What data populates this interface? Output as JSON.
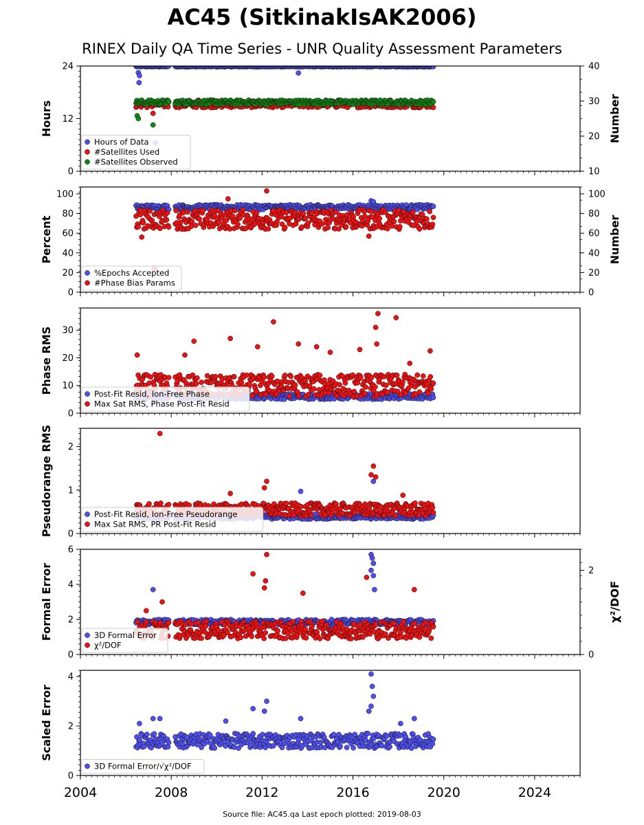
{
  "title": "AC45 (SitkinakIsAK2006)",
  "subtitle": "RINEX Daily QA Time Series - UNR Quality Assessment Parameters",
  "source_note": "Source file: AC45.qa Last epoch plotted: 2019-08-03",
  "colors": {
    "blue": "#4f4ff0",
    "red": "#ee1111",
    "green": "#118811"
  },
  "chart_data": [
    {
      "type": "scatter",
      "ylabel": "Hours",
      "ylim": [
        0,
        24
      ],
      "yticks": [
        "0",
        "12",
        "24"
      ],
      "right_ylabel": "Number",
      "right_ylim": [
        10,
        40
      ],
      "right_yticks": [
        "10",
        "20",
        "30",
        "40"
      ],
      "xlim": [
        2004,
        2026
      ],
      "grid": false,
      "legend_position": "lower-left",
      "series": [
        {
          "name": "Hours of Data",
          "color": "blue",
          "axis": "left",
          "band": [
            23.8,
            24.0
          ],
          "gap": [
            2007.9,
            2008.15
          ],
          "outliers": [
            [
              2006.55,
              22.5
            ],
            [
              2006.6,
              21.8
            ],
            [
              2006.58,
              20.2
            ],
            [
              2007.3,
              6.5
            ],
            [
              2013.6,
              22.4
            ]
          ]
        },
        {
          "name": "#Satellites Used",
          "color": "red",
          "axis": "left",
          "band": [
            14.5,
            16.0
          ],
          "gap": [
            2007.9,
            2008.15
          ],
          "outliers": [
            [
              2007.2,
              13.2
            ],
            [
              2009.2,
              16.2
            ]
          ]
        },
        {
          "name": "#Satellites Observed",
          "color": "green",
          "axis": "right",
          "band": [
            29.0,
            30.3
          ],
          "gap": [
            2007.9,
            2008.15
          ],
          "outliers": [
            [
              2006.5,
              25.8
            ],
            [
              2006.55,
              25.0
            ],
            [
              2007.2,
              23.2
            ]
          ]
        }
      ]
    },
    {
      "type": "scatter",
      "ylabel": "Percent",
      "ylim": [
        0,
        107
      ],
      "yticks": [
        "0",
        "20",
        "40",
        "60",
        "80",
        "100"
      ],
      "right_ylabel": "Number",
      "right_ylim": [
        0,
        107
      ],
      "right_yticks": [
        "0",
        "20",
        "40",
        "60",
        "80",
        "100"
      ],
      "xlim": [
        2004,
        2026
      ],
      "grid": false,
      "legend_position": "lower-left",
      "series": [
        {
          "name": "%Epochs Accepted",
          "color": "blue",
          "axis": "left",
          "band": [
            84,
            89
          ],
          "gap": [
            2007.9,
            2008.15
          ],
          "outliers": [
            [
              2016.8,
              93
            ],
            [
              2016.9,
              92
            ]
          ]
        },
        {
          "name": "#Phase Bias Params",
          "color": "red",
          "axis": "left",
          "band": [
            64,
            84
          ],
          "gap": [
            2007.9,
            2008.15
          ],
          "outliers": [
            [
              2007.25,
              24
            ],
            [
              2010.5,
              95
            ],
            [
              2012.2,
              103
            ],
            [
              2016.7,
              57
            ],
            [
              2006.7,
              56
            ]
          ]
        }
      ]
    },
    {
      "type": "scatter",
      "ylabel": "Phase RMS",
      "ylim": [
        0,
        38
      ],
      "yticks": [
        "0",
        "10",
        "20",
        "30"
      ],
      "xlim": [
        2004,
        2026
      ],
      "grid": false,
      "legend_position": "lower-left",
      "series": [
        {
          "name": "Post-Fit Resid, Ion-Free Phase",
          "color": "blue",
          "axis": "left",
          "band": [
            5,
            7
          ],
          "gap": [
            2007.9,
            2008.15
          ],
          "outliers": []
        },
        {
          "name": "Max Sat RMS, Phase Post-Fit Resid",
          "color": "red",
          "axis": "left",
          "band": [
            6,
            14
          ],
          "gap": [
            2007.9,
            2008.15
          ],
          "outliers": [
            [
              2006.5,
              21
            ],
            [
              2008.6,
              21
            ],
            [
              2009.0,
              26
            ],
            [
              2010.6,
              27
            ],
            [
              2012.5,
              33
            ],
            [
              2013.6,
              25
            ],
            [
              2016.3,
              23
            ],
            [
              2017.0,
              31
            ],
            [
              2017.1,
              36
            ],
            [
              2017.05,
              25
            ],
            [
              2017.9,
              34.5
            ],
            [
              2019.4,
              22.5
            ],
            [
              2011.8,
              24
            ],
            [
              2014.4,
              24
            ],
            [
              2015.0,
              22
            ],
            [
              2018.5,
              18
            ]
          ]
        }
      ]
    },
    {
      "type": "scatter",
      "ylabel": "Pseudorange RMS",
      "ylim": [
        0,
        2.42
      ],
      "yticks": [
        "0",
        "1",
        "2"
      ],
      "xlim": [
        2004,
        2026
      ],
      "grid": false,
      "legend_position": "lower-left",
      "series": [
        {
          "name": "Post-Fit Resid, Ion-Free Pseudorange",
          "color": "blue",
          "axis": "left",
          "band": [
            0.33,
            0.45
          ],
          "gap": [
            2007.9,
            2008.15
          ],
          "outliers": [
            [
              2013.7,
              0.97
            ],
            [
              2016.9,
              1.2
            ]
          ]
        },
        {
          "name": "Max Sat RMS, PR Post-Fit Resid",
          "color": "red",
          "axis": "left",
          "band": [
            0.4,
            0.7
          ],
          "gap": [
            2007.9,
            2008.15
          ],
          "outliers": [
            [
              2007.5,
              2.3
            ],
            [
              2012.2,
              1.2
            ],
            [
              2012.1,
              1.05
            ],
            [
              2016.9,
              1.55
            ],
            [
              2016.8,
              1.35
            ],
            [
              2017.0,
              1.3
            ],
            [
              2010.6,
              0.92
            ],
            [
              2018.2,
              0.88
            ]
          ]
        }
      ]
    },
    {
      "type": "scatter",
      "ylabel": "Formal Error",
      "ylim": [
        0,
        6
      ],
      "yticks": [
        "0",
        "2",
        "4",
        "6"
      ],
      "right_ylabel": "χ²/DOF",
      "right_ylim": [
        0,
        2.5
      ],
      "right_yticks": [
        "0",
        "2"
      ],
      "xlim": [
        2004,
        2026
      ],
      "grid": false,
      "legend_position": "lower-left",
      "series": [
        {
          "name": "3D Formal Error",
          "color": "blue",
          "axis": "left",
          "band": [
            1.7,
            2.0
          ],
          "gap": [
            2007.9,
            2008.15
          ],
          "outliers": [
            [
              2007.2,
              3.7
            ],
            [
              2016.8,
              5.7
            ],
            [
              2016.85,
              5.5
            ],
            [
              2016.9,
              5.2
            ],
            [
              2016.8,
              4.8
            ],
            [
              2016.9,
              4.5
            ],
            [
              2016.95,
              3.7
            ]
          ]
        },
        {
          "name": "χ²/DOF",
          "color": "red",
          "axis": "left",
          "band": [
            0.9,
            1.9
          ],
          "gap": [
            2007.9,
            2008.15
          ],
          "outliers": [
            [
              2011.6,
              4.6
            ],
            [
              2012.2,
              5.7
            ],
            [
              2012.15,
              4.2
            ],
            [
              2012.1,
              3.8
            ],
            [
              2013.8,
              3.5
            ],
            [
              2016.6,
              4.4
            ],
            [
              2018.7,
              3.7
            ],
            [
              2007.6,
              3.0
            ],
            [
              2006.9,
              2.5
            ]
          ]
        }
      ]
    },
    {
      "type": "scatter",
      "ylabel": "Scaled Error",
      "ylim": [
        0,
        4.25
      ],
      "yticks": [
        "0",
        "2",
        "4"
      ],
      "xlim": [
        2004,
        2026
      ],
      "grid": false,
      "legend_position": "lower-left",
      "xticks": [
        "2004",
        "2008",
        "2012",
        "2016",
        "2020",
        "2024"
      ],
      "series": [
        {
          "name": "3D Formal Error/√χ²/DOF",
          "color": "blue",
          "axis": "left",
          "band": [
            1.1,
            1.7
          ],
          "gap": [
            2007.9,
            2008.15
          ],
          "outliers": [
            [
              2006.6,
              2.1
            ],
            [
              2007.2,
              2.3
            ],
            [
              2007.5,
              2.3
            ],
            [
              2011.6,
              2.7
            ],
            [
              2012.2,
              3.0
            ],
            [
              2012.1,
              2.6
            ],
            [
              2016.8,
              4.1
            ],
            [
              2016.85,
              3.6
            ],
            [
              2016.9,
              3.2
            ],
            [
              2016.8,
              2.8
            ],
            [
              2016.7,
              2.6
            ],
            [
              2013.7,
              2.3
            ],
            [
              2018.7,
              2.3
            ],
            [
              2018.1,
              2.1
            ],
            [
              2010.4,
              2.2
            ]
          ]
        }
      ]
    }
  ]
}
